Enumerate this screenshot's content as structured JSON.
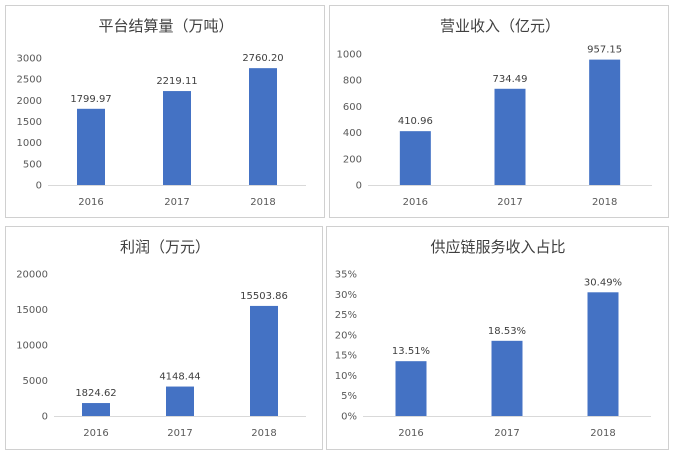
{
  "chart_data": [
    {
      "type": "bar",
      "title": "平台结算量（万吨）",
      "categories": [
        "2016",
        "2017",
        "2018"
      ],
      "values": [
        1799.97,
        2219.11,
        2760.2
      ],
      "labels": [
        "1799.97",
        "2219.11",
        "2760.20"
      ],
      "yticks": [
        "0",
        "500",
        "1000",
        "1500",
        "2000",
        "2500",
        "3000"
      ],
      "ylim": [
        0,
        3000
      ],
      "grid": false,
      "legend": "none",
      "color": "#4472C4"
    },
    {
      "type": "bar",
      "title": "营业收入（亿元）",
      "categories": [
        "2016",
        "2017",
        "2018"
      ],
      "values": [
        410.96,
        734.49,
        957.15
      ],
      "labels": [
        "410.96",
        "734.49",
        "957.15"
      ],
      "yticks": [
        "0",
        "200",
        "400",
        "600",
        "800",
        "1000"
      ],
      "ylim": [
        0,
        1000
      ],
      "grid": false,
      "legend": "none",
      "color": "#4472C4"
    },
    {
      "type": "bar",
      "title": "利润（万元）",
      "categories": [
        "2016",
        "2017",
        "2018"
      ],
      "values": [
        1824.62,
        4148.44,
        15503.86
      ],
      "labels": [
        "1824.62",
        "4148.44",
        "15503.86"
      ],
      "yticks": [
        "0",
        "5000",
        "10000",
        "15000",
        "20000"
      ],
      "ylim": [
        0,
        20000
      ],
      "grid": false,
      "legend": "none",
      "color": "#4472C4"
    },
    {
      "type": "bar",
      "title": "供应链服务收入占比",
      "categories": [
        "2016",
        "2017",
        "2018"
      ],
      "values": [
        13.51,
        18.53,
        30.49
      ],
      "labels": [
        "13.51%",
        "18.53%",
        "30.49%"
      ],
      "yticks": [
        "0%",
        "5%",
        "10%",
        "15%",
        "20%",
        "25%",
        "30%",
        "35%"
      ],
      "ylim": [
        0,
        35
      ],
      "grid": false,
      "legend": "none",
      "color": "#4472C4"
    }
  ]
}
